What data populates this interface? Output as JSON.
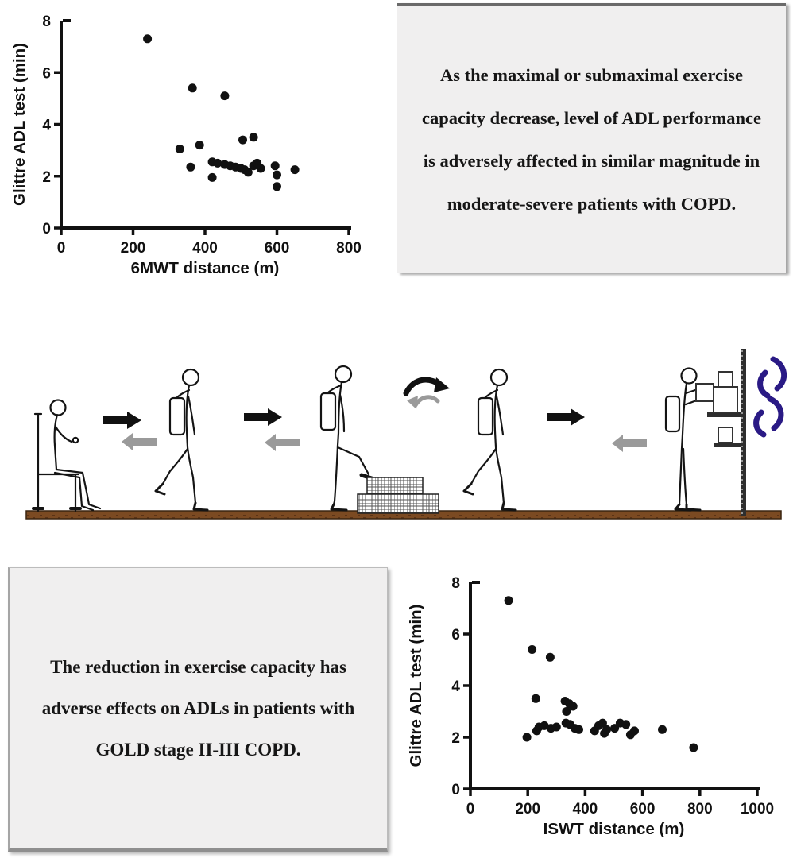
{
  "boxes": {
    "top_text": "As the maximal or submaximal exercise capacity decrease, level of ADL performance is adversely affected in similar magnitude in moderate-severe patients with COPD.",
    "bottom_text": "The reduction in exercise capacity has adverse effects on ADLs in patients with GOLD stage II-III COPD."
  },
  "colors": {
    "background": "#ffffff",
    "box_background": "#f0efef",
    "ink": "#111111",
    "gray_arrow": "#9a9a9a",
    "ground_brown": "#7b4a22",
    "ground_edge": "#3a2410",
    "rotation_arrow_blue": "#2a1a85"
  },
  "diagram": {
    "icons": [
      "seated-patient-figure",
      "forward-arrow-icon",
      "return-arrow-icon",
      "walking-patient-backpack-figure",
      "turn-arrows-icon",
      "stepping-patient-figure",
      "brick-step-icon",
      "shelf-patient-figure",
      "shelf-with-boxes-icon",
      "wall-post-icon",
      "box-rotation-arrows-icon",
      "ground-strip"
    ]
  },
  "chart_data": [
    {
      "type": "scatter",
      "title": "",
      "xlabel": "6MWT distance (m)",
      "ylabel": "Glittre ADL test (min)",
      "xlim": [
        0,
        800
      ],
      "ylim": [
        0,
        8
      ],
      "xticks": [
        0,
        200,
        400,
        600,
        800
      ],
      "yticks": [
        0,
        2,
        4,
        6,
        8
      ],
      "grid": false,
      "legend": "none",
      "marker": {
        "shape": "circle",
        "color": "#111111",
        "radius": 5.5
      },
      "points": [
        [
          240,
          7.3
        ],
        [
          365,
          5.4
        ],
        [
          455,
          5.1
        ],
        [
          330,
          3.05
        ],
        [
          385,
          3.2
        ],
        [
          505,
          3.4
        ],
        [
          535,
          3.5
        ],
        [
          360,
          2.35
        ],
        [
          420,
          1.95
        ],
        [
          420,
          2.55
        ],
        [
          435,
          2.5
        ],
        [
          455,
          2.45
        ],
        [
          470,
          2.4
        ],
        [
          485,
          2.35
        ],
        [
          500,
          2.3
        ],
        [
          510,
          2.25
        ],
        [
          520,
          2.15
        ],
        [
          535,
          2.4
        ],
        [
          545,
          2.5
        ],
        [
          555,
          2.3
        ],
        [
          595,
          2.4
        ],
        [
          600,
          2.05
        ],
        [
          600,
          1.6
        ],
        [
          650,
          2.25
        ]
      ]
    },
    {
      "type": "scatter",
      "title": "",
      "xlabel": "ISWT distance (m)",
      "ylabel": "Glittre ADL test (min)",
      "xlim": [
        0,
        1000
      ],
      "ylim": [
        0,
        8
      ],
      "xticks": [
        0,
        200,
        400,
        600,
        800,
        1000
      ],
      "yticks": [
        0,
        2,
        4,
        6,
        8
      ],
      "grid": false,
      "legend": "none",
      "marker": {
        "shape": "circle",
        "color": "#111111",
        "radius": 5.5
      },
      "points": [
        [
          133,
          7.3
        ],
        [
          215,
          5.4
        ],
        [
          278,
          5.1
        ],
        [
          228,
          3.5
        ],
        [
          330,
          3.4
        ],
        [
          345,
          3.3
        ],
        [
          358,
          3.2
        ],
        [
          335,
          3.0
        ],
        [
          197,
          2.0
        ],
        [
          231,
          2.25
        ],
        [
          239,
          2.4
        ],
        [
          258,
          2.45
        ],
        [
          281,
          2.35
        ],
        [
          300,
          2.4
        ],
        [
          333,
          2.55
        ],
        [
          347,
          2.5
        ],
        [
          364,
          2.35
        ],
        [
          378,
          2.3
        ],
        [
          433,
          2.25
        ],
        [
          447,
          2.45
        ],
        [
          461,
          2.55
        ],
        [
          467,
          2.15
        ],
        [
          475,
          2.3
        ],
        [
          503,
          2.35
        ],
        [
          522,
          2.55
        ],
        [
          542,
          2.5
        ],
        [
          558,
          2.1
        ],
        [
          572,
          2.25
        ],
        [
          669,
          2.3
        ],
        [
          778,
          1.6
        ]
      ]
    }
  ]
}
